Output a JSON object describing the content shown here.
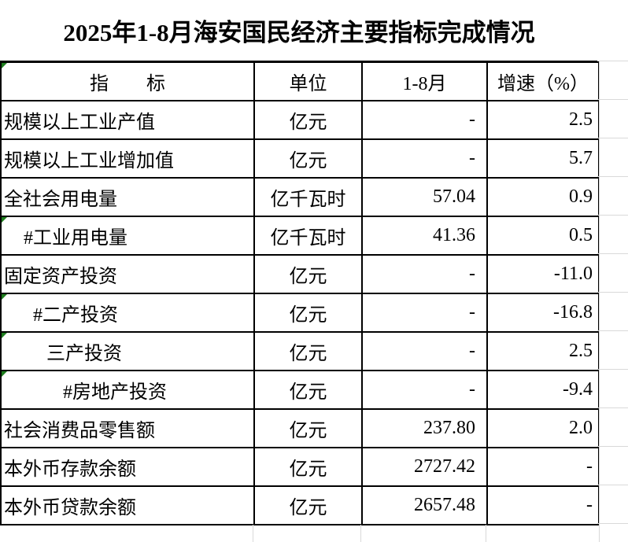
{
  "title": "2025年1-8月海安国民经济主要指标完成情况",
  "colors": {
    "background": "#ffffff",
    "text": "#000000",
    "table_border": "#000000",
    "gridline": "#d9d9d9",
    "error_triangle": "#1e7e1e"
  },
  "table": {
    "headers": {
      "indicator": "指　　标",
      "unit": "单位",
      "period": "1-8月",
      "growth": "增速（%）"
    },
    "header_error_marker": true,
    "rows": [
      {
        "label": "规模以上工业产值",
        "unit": "亿元",
        "value": "-",
        "growth": "2.5",
        "indent": 0,
        "error_marker": false
      },
      {
        "label": "规模以上工业增加值",
        "unit": "亿元",
        "value": "-",
        "growth": "5.7",
        "indent": 0,
        "error_marker": false
      },
      {
        "label": "全社会用电量",
        "unit": "亿千瓦时",
        "value": "57.04",
        "growth": "0.9",
        "indent": 0,
        "error_marker": false
      },
      {
        "label": "#工业用电量",
        "unit": "亿千瓦时",
        "value": "41.36",
        "growth": "0.5",
        "indent": 1,
        "error_marker": true
      },
      {
        "label": "固定资产投资",
        "unit": "亿元",
        "value": "-",
        "growth": "-11.0",
        "indent": 0,
        "error_marker": false
      },
      {
        "label": "#二产投资",
        "unit": "亿元",
        "value": "-",
        "growth": "-16.8",
        "indent": 2,
        "error_marker": true
      },
      {
        "label": "三产投资",
        "unit": "亿元",
        "value": "-",
        "growth": "2.5",
        "indent": 3,
        "error_marker": true
      },
      {
        "label": "#房地产投资",
        "unit": "亿元",
        "value": "-",
        "growth": "-9.4",
        "indent": 4,
        "error_marker": true
      },
      {
        "label": "社会消费品零售额",
        "unit": "亿元",
        "value": "237.80",
        "growth": "2.0",
        "indent": 0,
        "error_marker": false
      },
      {
        "label": "本外币存款余额",
        "unit": "亿元",
        "value": "2727.42",
        "growth": "-",
        "indent": 0,
        "error_marker": false
      },
      {
        "label": "本外币贷款余额",
        "unit": "亿元",
        "value": "2657.48",
        "growth": "-",
        "indent": 0,
        "error_marker": false
      }
    ]
  }
}
